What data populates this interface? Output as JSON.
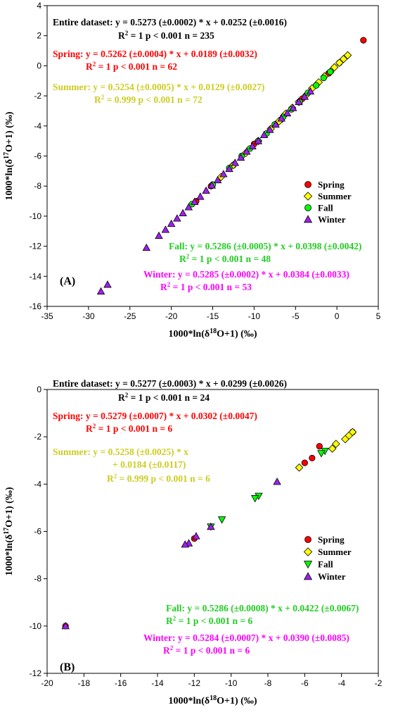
{
  "chart_data": [
    {
      "type": "scatter",
      "panel_label": "(A)",
      "xlabel": "1000*ln(δ18O+1) (‰)",
      "ylabel": "1000*ln(δ17O+1) (‰)",
      "xlim": [
        -35,
        5
      ],
      "ylim": [
        -16,
        4
      ],
      "xticks": [
        -35,
        -30,
        -25,
        -20,
        -15,
        -10,
        -5,
        0,
        5
      ],
      "yticks": [
        -16,
        -14,
        -12,
        -10,
        -8,
        -6,
        -4,
        -2,
        0,
        2,
        4
      ],
      "grid": false,
      "legend_position": "right-middle",
      "colors": {
        "Spring": "#ff0000",
        "Summer": "#ffff00",
        "Fall": "#00ff00",
        "Winter": "#a020f0"
      },
      "annotations": [
        {
          "color": "#000000",
          "line1_label": "Entire dataset:",
          "line1": "y = 0.5273 (±0.0002) * x + 0.0252 (±0.0016)",
          "line2": "= 1  p < 0.001 n = 235"
        },
        {
          "color": "#ff0000",
          "line1_label": "Spring:",
          "line1": "y = 0.5262 (±0.0004) * x + 0.0189 (±0.0032)",
          "line2": "= 1  p < 0.001 n = 62"
        },
        {
          "color": "#cccc22",
          "line1_label": "Summer:",
          "line1": "y = 0.5254 (±0.0005) * x + 0.0129 (±0.0027)",
          "line2": "= 0.999  p < 0.001 n = 72"
        },
        {
          "color": "#22cc22",
          "line1_label": "Fall:",
          "line1": "y = 0.5286 (±0.0005) * x + 0.0398 (±0.0042)",
          "line2": "= 1  p < 0.001 n = 48"
        },
        {
          "color": "#ff00ff",
          "line1_label": "Winter:",
          "line1": "y = 0.5285 (±0.0002) * x + 0.0384 (±0.0033)",
          "line2": "= 1  p < 0.001 n = 53"
        }
      ],
      "series": [
        {
          "name": "Spring",
          "marker": "circle",
          "x": [
            3.2,
            0.3,
            -1.0,
            -4.2,
            -6.8,
            -10.0,
            -12.5,
            -15.2,
            -17.0
          ],
          "y": [
            1.7,
            0.2,
            -0.5,
            -2.2,
            -3.6,
            -5.2,
            -6.6,
            -8.0,
            -9.0
          ]
        },
        {
          "name": "Summer",
          "marker": "diamond",
          "x": [
            1.3,
            0.8,
            0.3,
            -0.3,
            -0.8,
            -1.5,
            -2.2,
            -3.0,
            -3.8,
            -4.6,
            -5.4,
            -6.2,
            -7.0,
            -8.0,
            -9.5,
            -11.0,
            -12.5,
            -14.0
          ],
          "y": [
            0.7,
            0.45,
            0.2,
            -0.1,
            -0.4,
            -0.7,
            -1.1,
            -1.5,
            -2.0,
            -2.4,
            -2.8,
            -3.2,
            -3.7,
            -4.2,
            -5.0,
            -5.8,
            -6.6,
            -7.4
          ]
        },
        {
          "name": "Fall",
          "marker": "circle",
          "x": [
            -0.8,
            -1.6,
            -2.5,
            -3.5,
            -4.5,
            -5.5,
            -6.5,
            -7.5,
            -8.5,
            -9.5,
            -10.5,
            -11.5,
            -13.0,
            -15.0,
            -17.5
          ],
          "y": [
            -0.4,
            -0.8,
            -1.3,
            -1.8,
            -2.4,
            -2.9,
            -3.4,
            -3.9,
            -4.5,
            -5.0,
            -5.5,
            -6.0,
            -6.8,
            -7.9,
            -9.2
          ]
        },
        {
          "name": "Winter",
          "marker": "triangle",
          "x": [
            -28.5,
            -27.7,
            -23.0,
            -21.5,
            -20.7,
            -20.0,
            -19.3,
            -18.6,
            -17.9,
            -17.2,
            -16.5,
            -15.8,
            -15.1,
            -14.4,
            -13.7,
            -13.0,
            -12.3,
            -11.6,
            -10.9,
            -10.2,
            -9.5,
            -8.8,
            -8.1,
            -7.4,
            -6.7,
            -6.0,
            -5.3,
            -4.6,
            -3.9,
            -3.2
          ],
          "y": [
            -15.0,
            -14.55,
            -12.1,
            -11.3,
            -10.9,
            -10.5,
            -10.15,
            -9.8,
            -9.4,
            -9.05,
            -8.7,
            -8.3,
            -7.95,
            -7.6,
            -7.2,
            -6.85,
            -6.45,
            -6.1,
            -5.7,
            -5.35,
            -5.0,
            -4.6,
            -4.25,
            -3.9,
            -3.5,
            -3.15,
            -2.8,
            -2.4,
            -2.05,
            -1.7
          ]
        }
      ]
    },
    {
      "type": "scatter",
      "panel_label": "(B)",
      "xlabel": "1000*ln(δ18O+1) (‰)",
      "ylabel": "1000*ln(δ17O+1) (‰)",
      "xlim": [
        -20,
        -2
      ],
      "ylim": [
        -12,
        0
      ],
      "xticks": [
        -20,
        -18,
        -16,
        -14,
        -12,
        -10,
        -8,
        -6,
        -4,
        -2
      ],
      "yticks": [
        -12,
        -10,
        -8,
        -6,
        -4,
        -2,
        0
      ],
      "grid": false,
      "legend_position": "right-middle",
      "colors": {
        "Spring": "#ff0000",
        "Summer": "#ffff00",
        "Fall": "#00ff00",
        "Winter": "#a020f0"
      },
      "annotations": [
        {
          "color": "#000000",
          "line1_label": "Entire dataset:",
          "line1": "y = 0.5277 (±0.0003) * x + 0.0299 (±0.0026)",
          "line2": "= 1  p < 0.001 n = 24"
        },
        {
          "color": "#ff0000",
          "line1_label": "Spring:",
          "line1": "y = 0.5279 (±0.0007) * x + 0.0302 (±0.0047)",
          "line2": "= 1  p < 0.001 n = 6"
        },
        {
          "color": "#cccc22",
          "line1_label": "Summer:",
          "line1": "y = 0.5258 (±0.0025) * x",
          "line1b": "+ 0.0184 (±0.0117)",
          "line2": "= 0.999  p < 0.001 n = 6"
        },
        {
          "color": "#22cc22",
          "line1_label": "Fall:",
          "line1": "y = 0.5286 (±0.0008) * x + 0.0422 (±0.0067)",
          "line2": "= 1  p < 0.001 n = 6"
        },
        {
          "color": "#ff00ff",
          "line1_label": "Winter:",
          "line1": "y = 0.5284 (±0.0007) * x + 0.0390 (±0.0085)",
          "line2": "= 1  p < 0.001 n = 6"
        }
      ],
      "series": [
        {
          "name": "Spring",
          "marker": "circle",
          "x": [
            -3.4,
            -5.2,
            -5.6,
            -6.0,
            -12.0,
            -19.0
          ],
          "y": [
            -1.8,
            -2.4,
            -2.9,
            -3.1,
            -6.3,
            -10.0
          ]
        },
        {
          "name": "Summer",
          "marker": "diamond",
          "x": [
            -3.4,
            -3.6,
            -3.8,
            -4.3,
            -4.5,
            -6.3
          ],
          "y": [
            -1.8,
            -1.95,
            -2.1,
            -2.3,
            -2.5,
            -3.3
          ]
        },
        {
          "name": "Fall",
          "marker": "triangle-down",
          "x": [
            -4.9,
            -5.1,
            -8.5,
            -8.7,
            -10.5,
            -11.1
          ],
          "y": [
            -2.6,
            -2.7,
            -4.5,
            -4.6,
            -5.5,
            -5.8
          ]
        },
        {
          "name": "Winter",
          "marker": "triangle",
          "x": [
            -7.5,
            -11.1,
            -11.9,
            -12.3,
            -12.5,
            -19.0
          ],
          "y": [
            -3.9,
            -5.8,
            -6.2,
            -6.5,
            -6.55,
            -10.0
          ]
        }
      ]
    }
  ]
}
